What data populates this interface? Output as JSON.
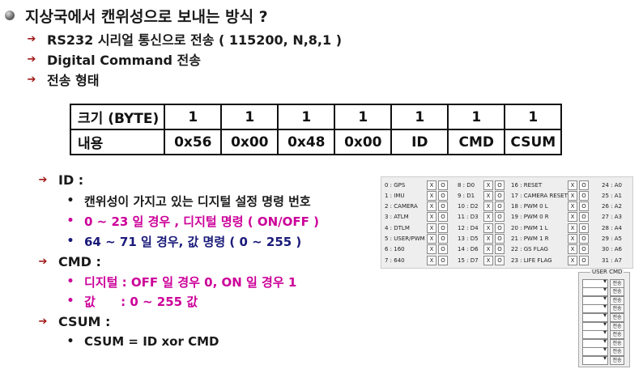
{
  "title": "지상국에서 캔위성으로 보내는 방식 ?",
  "intro": [
    "RS232 시리얼 통신으로 전송 ( 115200, N,8,1 )",
    "Digital Command 전송",
    "전송 형태"
  ],
  "table": {
    "row1": [
      "크기 (BYTE)",
      "1",
      "1",
      "1",
      "1",
      "1",
      "1",
      "1"
    ],
    "row2": [
      "내용",
      "0x56",
      "0x00",
      "0x48",
      "0x00",
      "ID",
      "CMD",
      "CSUM"
    ]
  },
  "id_section": {
    "heading": "ID  :",
    "items": [
      "캔위성이 가지고 있는 디지털 설정 명령 번호",
      "0 ~ 23 일 경우  , 디지털 명령 ( ON/OFF )",
      "64 ~ 71 일 경우,  값 명령 ( 0 ~ 255 )"
    ]
  },
  "cmd_section": {
    "heading": "CMD :",
    "items": [
      "디지털 : OFF 일 경우 0, ON 일 경우  1",
      "값      : 0 ~ 255 값"
    ]
  },
  "csum_section": {
    "heading": "CSUM :",
    "items": [
      "CSUM = ID xor CMD"
    ]
  },
  "panel": {
    "x_label": "X",
    "o_label": "O",
    "col1": [
      "0 : GPS",
      "1 : IMU",
      "2 : CAMERA",
      "3 : ATLM",
      "4 : DTLM",
      "5 : USER/PWM",
      "6 : 160",
      "7 : 640"
    ],
    "col2": [
      "8 : D0",
      "9 : D1",
      "10 : D2",
      "11 : D3",
      "12 : D4",
      "13 : D5",
      "14 : D6",
      "15 : D7"
    ],
    "col3": [
      "16 : RESET",
      "17 : CAMERA RESET",
      "18 : PWM 0 L",
      "19 : PWM 0 R",
      "20 : PWM 1 L",
      "21 : PWM 1 R",
      "22 : GS FLAG",
      "23 : LIFE FLAG"
    ],
    "col4": [
      "24 : A0",
      "25 : A1",
      "26 : A2",
      "27 : A3",
      "28 : A4",
      "29 : A5",
      "30 : A6",
      "31 : A7"
    ]
  },
  "user_cmd": {
    "title": "USER CMD",
    "send_label": "전송"
  }
}
